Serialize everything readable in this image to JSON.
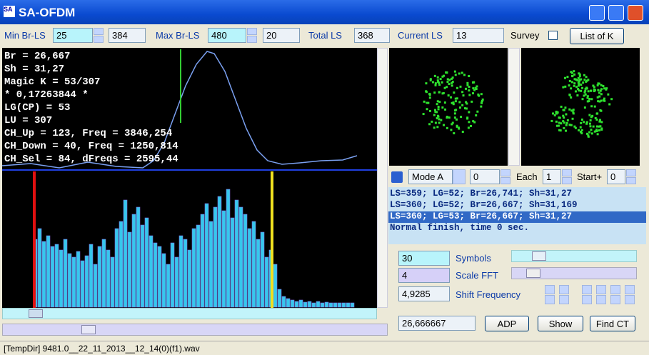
{
  "window": {
    "title": "SA-OFDM"
  },
  "toolbar": {
    "min_br_ls_label": "Min Br-LS",
    "min_br_ls": "25",
    "min_br_ls_2": "384",
    "max_br_ls_label": "Max Br-LS",
    "max_br_ls": "480",
    "max_br_ls_2": "20",
    "total_ls_label": "Total LS",
    "total_ls": "368",
    "current_ls_label": "Current LS",
    "current_ls": "13",
    "survey_label": "Survey",
    "list_button": "List of K"
  },
  "info_lines": [
    "Br = 26,667",
    "Sh = 31,27",
    "Magic K = 53/307",
    "* 0,17263844 *",
    "LG(CP) = 53",
    "LU = 307",
    "CH_Up = 123, Freq = 3846,254",
    "CH_Down = 40, Freq = 1250,814",
    "CH_Sel = 84, dFreqs = 2595,44"
  ],
  "spectrum": {
    "color": "#36c8ec",
    "edge": "#7a6ee0",
    "ylim": [
      0,
      190
    ],
    "values": [
      95,
      110,
      92,
      100,
      85,
      88,
      80,
      95,
      75,
      70,
      78,
      65,
      72,
      88,
      60,
      85,
      95,
      80,
      70,
      110,
      120,
      150,
      105,
      130,
      140,
      115,
      125,
      100,
      90,
      85,
      75,
      60,
      90,
      70,
      100,
      95,
      80,
      110,
      115,
      130,
      145,
      120,
      140,
      155,
      135,
      165,
      125,
      150,
      140,
      130,
      110,
      120,
      95,
      105,
      70,
      80,
      60,
      25,
      15,
      12,
      10,
      8,
      10,
      7,
      8,
      6,
      8,
      6,
      7,
      6,
      6,
      6,
      6,
      6,
      6
    ]
  },
  "mode": {
    "mode": "Mode A",
    "value": "0",
    "each_label": "Each",
    "each": "1",
    "start_label": "Start+",
    "start": "0"
  },
  "log": {
    "lines": [
      "LS=359; LG=52; Br=26,741; Sh=31,27",
      "LS=360; LG=52; Br=26,667; Sh=31,169",
      "LS=360; LG=53; Br=26,667; Sh=31,27",
      "Normal finish, time 0 sec."
    ],
    "selected": 2
  },
  "settings": {
    "symbols": "30",
    "symbols_label": "Symbols",
    "scale_fft": "4",
    "scale_fft_label": "Scale FFT",
    "shift": "4,9285",
    "shift_label": "Shift Frequency",
    "result": "26,666667"
  },
  "buttons": [
    "ADP",
    "Show",
    "Find CT"
  ],
  "status": "[TempDir] 9481.0__22_11_2013__12_14(0)(f1).wav"
}
